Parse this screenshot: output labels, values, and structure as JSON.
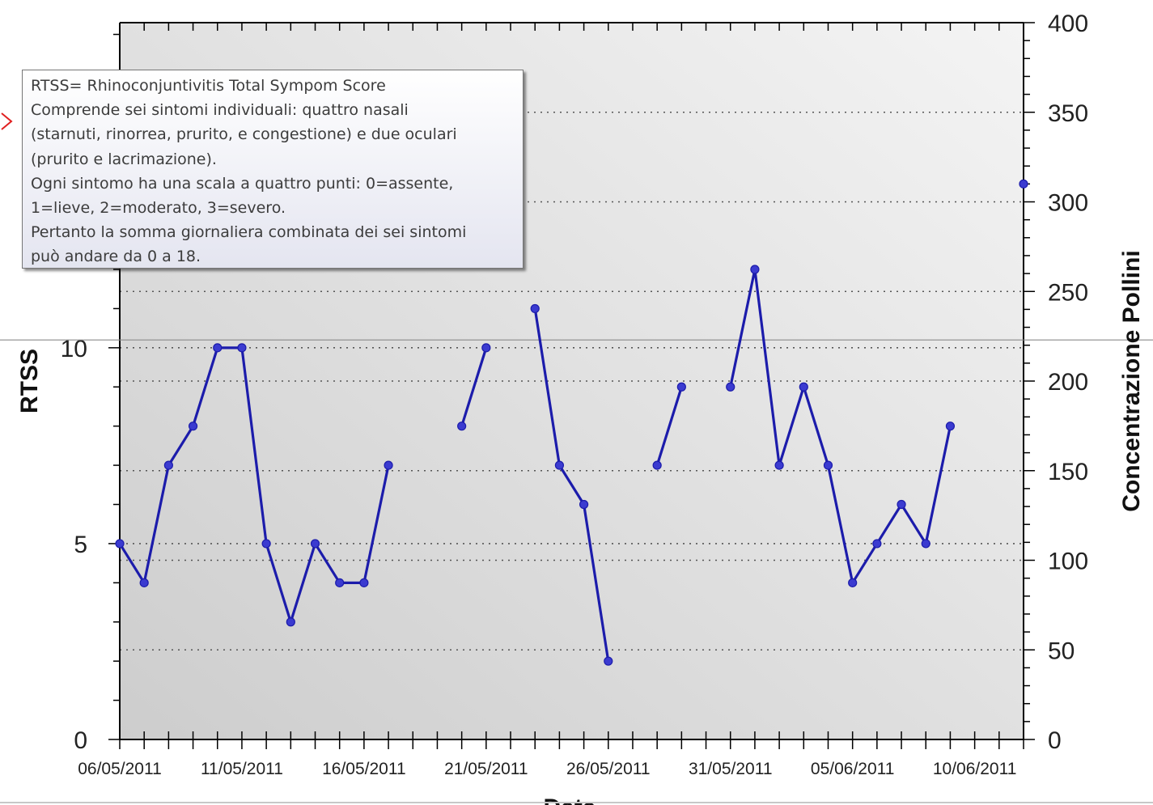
{
  "chart_data": {
    "type": "line",
    "xlabel": "Data",
    "ylabel": "RTSS",
    "y2label": "Concentrazione Pollini",
    "x_start": "06/05/2011",
    "x_end": "12/06/2011",
    "ylim": [
      0,
      18.3
    ],
    "y_ticks": [
      0,
      5,
      10
    ],
    "y2lim": [
      0,
      400
    ],
    "y2_ticks": [
      0,
      50,
      100,
      150,
      200,
      250,
      300,
      350,
      400
    ],
    "x_tick_labels": [
      "06/05/2011",
      "11/05/2011",
      "16/05/2011",
      "21/05/2011",
      "26/05/2011",
      "31/05/2011",
      "05/06/2011",
      "10/06/2011"
    ],
    "grid": "horizontal dotted",
    "series": [
      {
        "color": "#1c1cab",
        "points": [
          [
            "06/05/2011",
            5
          ],
          [
            "07/05/2011",
            4
          ],
          [
            "08/05/2011",
            7
          ],
          [
            "09/05/2011",
            8
          ],
          [
            "10/05/2011",
            10
          ],
          [
            "11/05/2011",
            10
          ],
          [
            "12/05/2011",
            5
          ],
          [
            "13/05/2011",
            3
          ],
          [
            "14/05/2011",
            5
          ],
          [
            "15/05/2011",
            4
          ],
          [
            "16/05/2011",
            4
          ],
          [
            "17/05/2011",
            7
          ],
          [
            "18/05/2011",
            null
          ],
          [
            "19/05/2011",
            null
          ],
          [
            "20/05/2011",
            8
          ],
          [
            "21/05/2011",
            10
          ],
          [
            "22/05/2011",
            null
          ],
          [
            "23/05/2011",
            11
          ],
          [
            "24/05/2011",
            7
          ],
          [
            "25/05/2011",
            6
          ],
          [
            "26/05/2011",
            2
          ],
          [
            "27/05/2011",
            null
          ],
          [
            "28/05/2011",
            7
          ],
          [
            "29/05/2011",
            9
          ],
          [
            "30/05/2011",
            null
          ],
          [
            "31/05/2011",
            9
          ],
          [
            "01/06/2011",
            12
          ],
          [
            "02/06/2011",
            7
          ],
          [
            "03/06/2011",
            9
          ],
          [
            "04/06/2011",
            7
          ],
          [
            "05/06/2011",
            4
          ],
          [
            "06/06/2011",
            5
          ],
          [
            "07/06/2011",
            6
          ],
          [
            "08/06/2011",
            5
          ],
          [
            "09/06/2011",
            8
          ]
        ]
      },
      {
        "axis": "right",
        "color": "#1c1cab",
        "points": [
          [
            "12/06/2011",
            310
          ]
        ]
      }
    ],
    "reference_line_y": 10.2
  },
  "tooltip": {
    "lines": [
      "RTSS= Rhinoconjuntivitis Total Sympom Score",
      "Comprende sei sintomi individuali: quattro nasali",
      "(starnuti, rinorrea, prurito, e congestione) e due oculari",
      "(prurito e lacrimazione).",
      "Ogni sintomo ha una scala a quattro punti: 0=assente,",
      "1=lieve, 2=moderato, 3=severo.",
      "Pertanto la somma giornaliera combinata dei sei sintomi",
      "può andare da 0 a 18."
    ]
  },
  "colors": {
    "series": "#1c1cab",
    "plot_bg_top": "#f4f4f4",
    "plot_bg_bottom": "#cfcfcf",
    "marker_red": "#e02020"
  }
}
